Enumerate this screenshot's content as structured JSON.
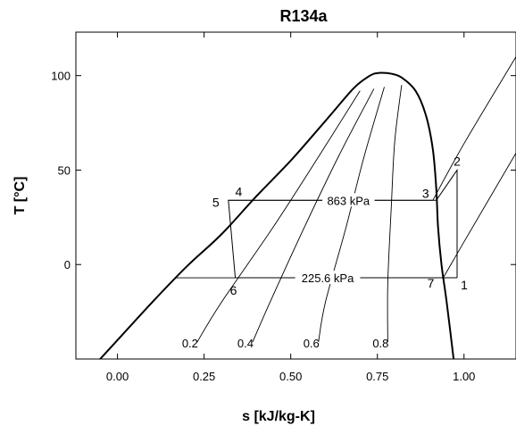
{
  "chart_data": {
    "type": "line",
    "title": "R134a",
    "xlabel": "s [kJ/kg-K]",
    "ylabel": "T [°C]",
    "xlim": [
      -0.12,
      1.15
    ],
    "ylim": [
      -50,
      123
    ],
    "x_ticks": [
      0.0,
      0.25,
      0.5,
      0.75,
      1.0
    ],
    "x_tick_labels": [
      "0.00",
      "0.25",
      "0.50",
      "0.75",
      "1.00"
    ],
    "y_ticks": [
      0,
      50,
      100
    ],
    "y_tick_labels": [
      "0",
      "50",
      "100"
    ],
    "grid": false,
    "saturation_liquid": {
      "s": [
        -0.06,
        0.0,
        0.1,
        0.2,
        0.3,
        0.4,
        0.5,
        0.6,
        0.68,
        0.72,
        0.74
      ],
      "T": [
        -52,
        -40,
        -20,
        -1,
        16,
        36,
        55,
        76,
        93,
        99,
        101
      ]
    },
    "saturation_vapor": {
      "s": [
        0.74,
        0.76,
        0.79,
        0.82,
        0.86,
        0.89,
        0.91,
        0.92,
        0.925,
        0.935,
        0.95,
        0.97
      ],
      "T": [
        101,
        101.5,
        101,
        99,
        92,
        79,
        61,
        40,
        20,
        0,
        -20,
        -50
      ]
    },
    "quality_lines": [
      {
        "label": "0.2",
        "s": [
          0.23,
          0.3,
          0.45,
          0.58,
          0.7
        ],
        "T": [
          -41,
          -20,
          20,
          57,
          92
        ]
      },
      {
        "label": "0.4",
        "s": [
          0.39,
          0.44,
          0.54,
          0.64,
          0.74
        ],
        "T": [
          -41,
          -20,
          20,
          58,
          93
        ]
      },
      {
        "label": "0.6",
        "s": [
          0.58,
          0.6,
          0.66,
          0.71,
          0.77
        ],
        "T": [
          -41,
          -20,
          20,
          56,
          94
        ]
      },
      {
        "label": "0.8",
        "s": [
          0.78,
          0.78,
          0.79,
          0.8,
          0.82
        ],
        "T": [
          -41,
          -10,
          30,
          65,
          95
        ]
      }
    ],
    "isobars": [
      {
        "label": "863 kPa",
        "s": [
          0.32,
          0.91,
          1.0,
          1.15
        ],
        "T": [
          34,
          34,
          64,
          110
        ]
      },
      {
        "label": "225.6 kPa",
        "s": [
          0.17,
          0.94,
          1.0,
          1.15
        ],
        "T": [
          -7,
          -7,
          12,
          59
        ]
      }
    ],
    "cycle": {
      "points": [
        {
          "label": "1",
          "s": 0.98,
          "T": -7
        },
        {
          "label": "2",
          "s": 0.98,
          "T": 50
        },
        {
          "label": "3",
          "s": 0.92,
          "T": 34
        },
        {
          "label": "4",
          "s": 0.355,
          "T": 34
        },
        {
          "label": "5",
          "s": 0.32,
          "T": 34
        },
        {
          "label": "6",
          "s": 0.34,
          "T": -7
        },
        {
          "label": "7",
          "s": 0.94,
          "T": -7
        }
      ],
      "path": [
        "1",
        "2",
        "3",
        "5",
        "6",
        "7",
        "1"
      ]
    }
  }
}
